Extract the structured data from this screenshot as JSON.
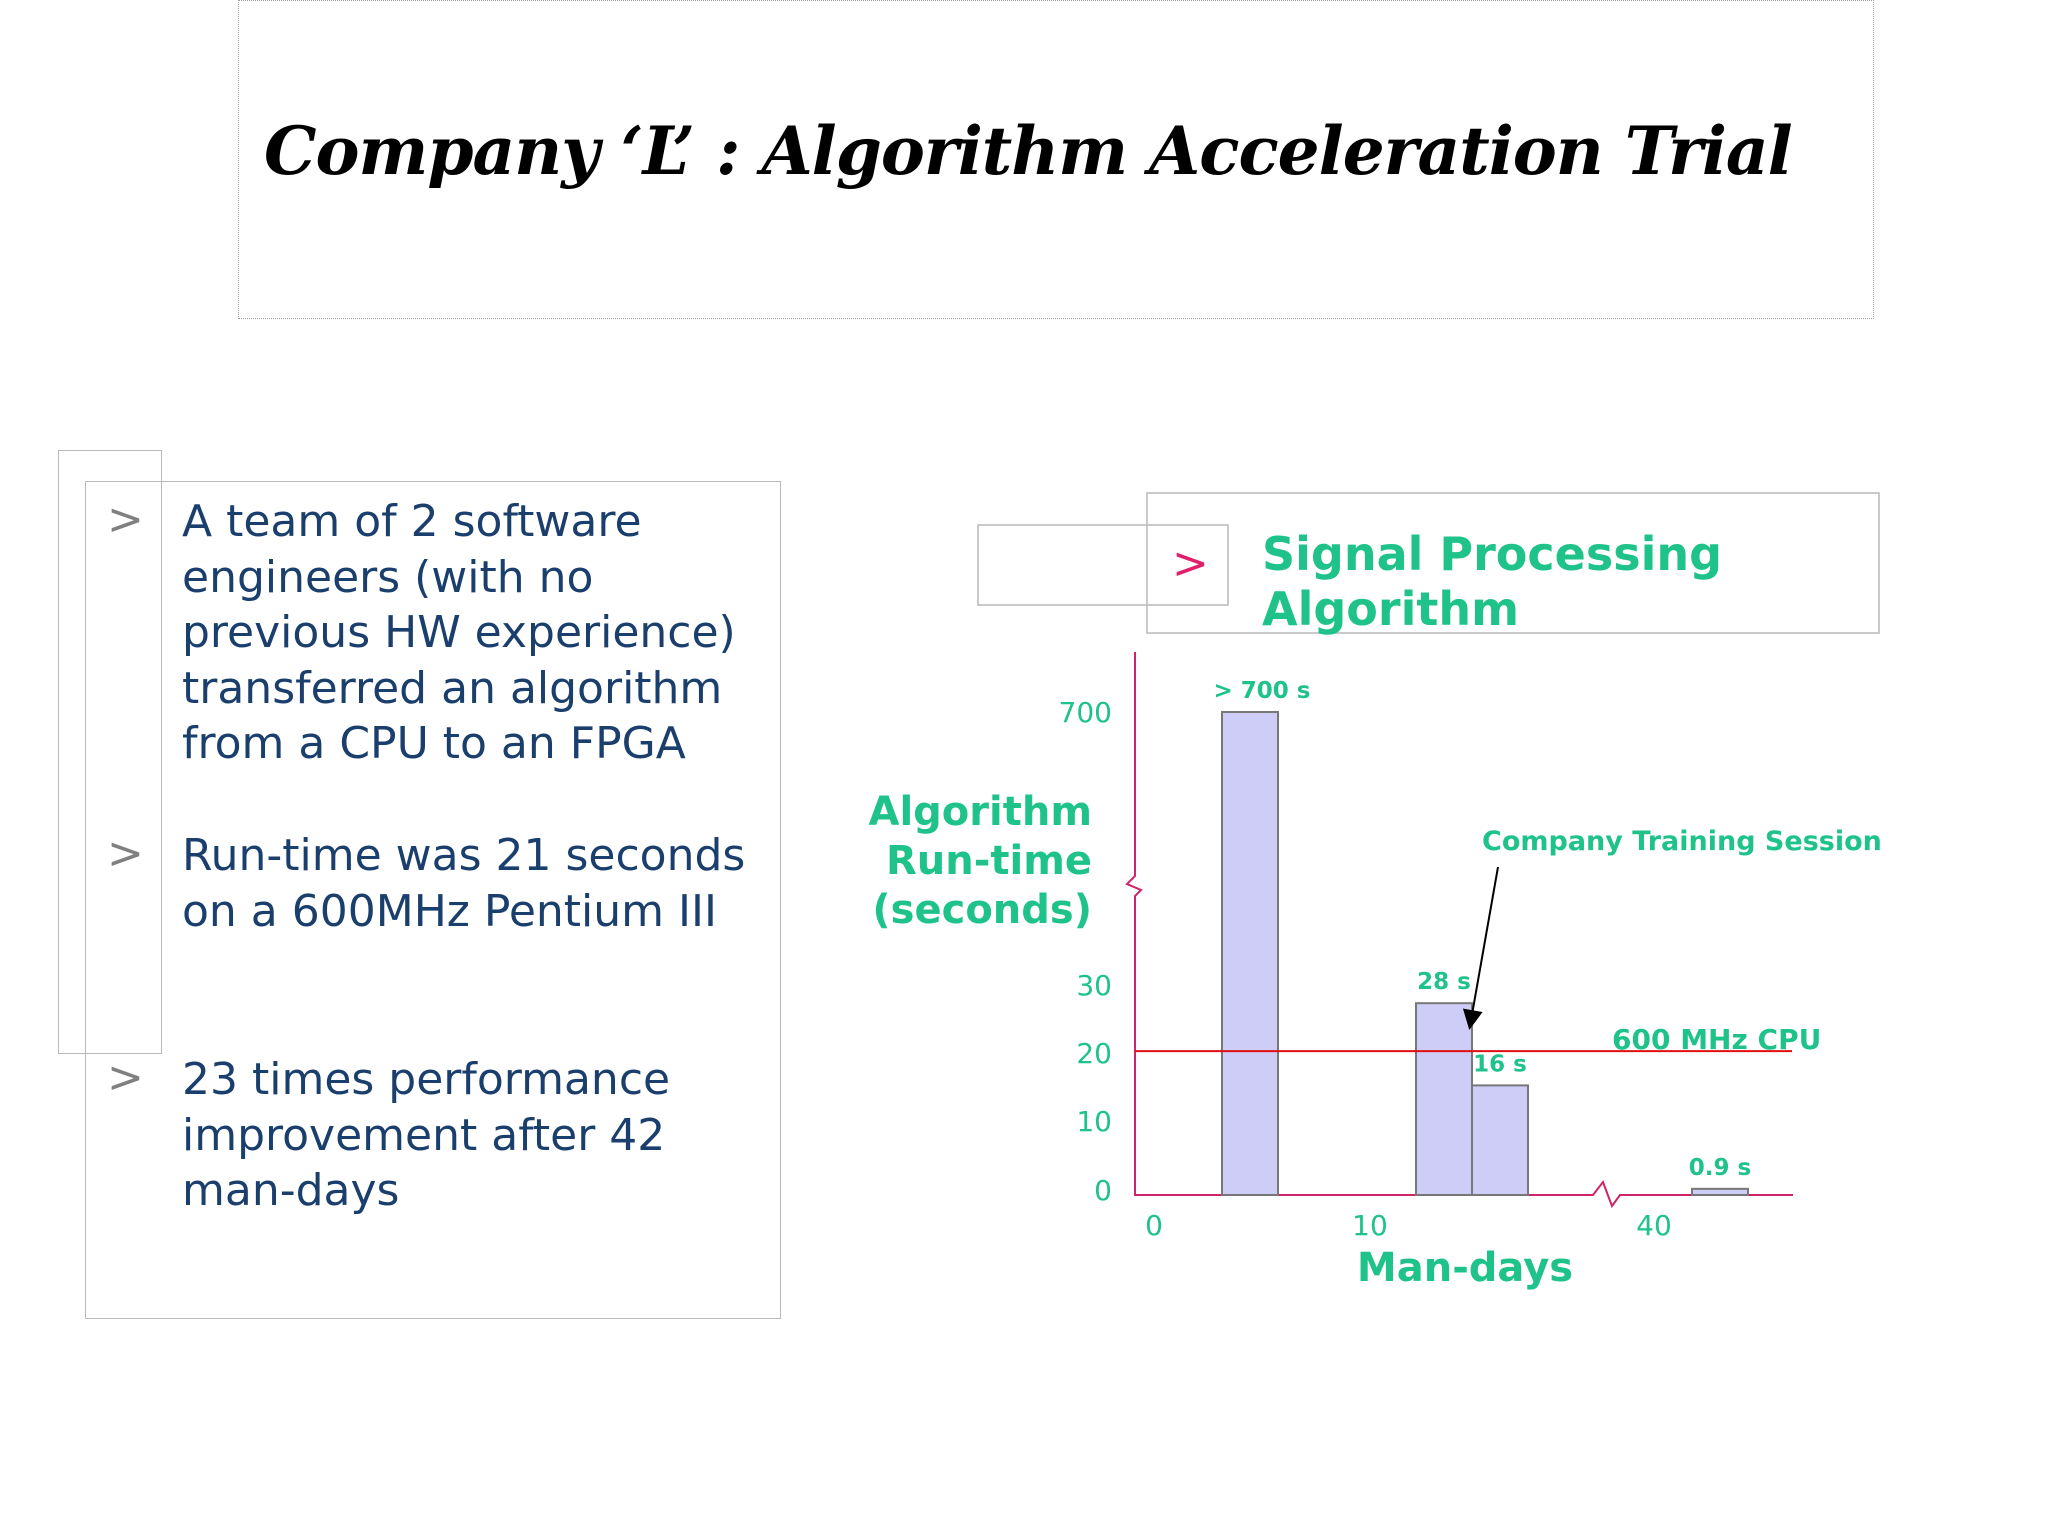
{
  "title": "Company ‘L’ : Algorithm Acceleration Trial",
  "bullets": [
    {
      "mark": ">",
      "text": "A team of 2 software engineers (with no previous HW experience) transferred an algorithm from a CPU to an FPGA"
    },
    {
      "mark": ">",
      "text": "Run-time was 21 seconds on a 600MHz Pentium III"
    },
    {
      "mark": ">",
      "text": "23 times performance improvement after 42 man-days"
    }
  ],
  "colors": {
    "green": "#1fc38a",
    "bar_fill": "#cdcdf7",
    "bar_stroke": "#777777",
    "line": "#e01010",
    "axis": "#d0246a",
    "text": "#1b3f6d"
  },
  "chart_data": {
    "type": "bar",
    "title": "Signal Processing Algorithm",
    "title_mark": ">",
    "xlabel": "Man-days",
    "ylabel": [
      "Algorithm",
      "Run-time",
      "(seconds)"
    ],
    "x_ticks": [
      "0",
      "10",
      "40"
    ],
    "y_ticks": [
      "0",
      "10",
      "20",
      "30",
      "700"
    ],
    "bars": [
      {
        "label": "> 700 s",
        "value": 700
      },
      {
        "label": "28 s",
        "value": 28
      },
      {
        "label": "16 s",
        "value": 16
      },
      {
        "label": "0.9 s",
        "value": 0.9
      }
    ],
    "reference_line": {
      "label": "600 MHz CPU",
      "value": 21
    },
    "annotation": "Company Training Session",
    "grid": false
  }
}
